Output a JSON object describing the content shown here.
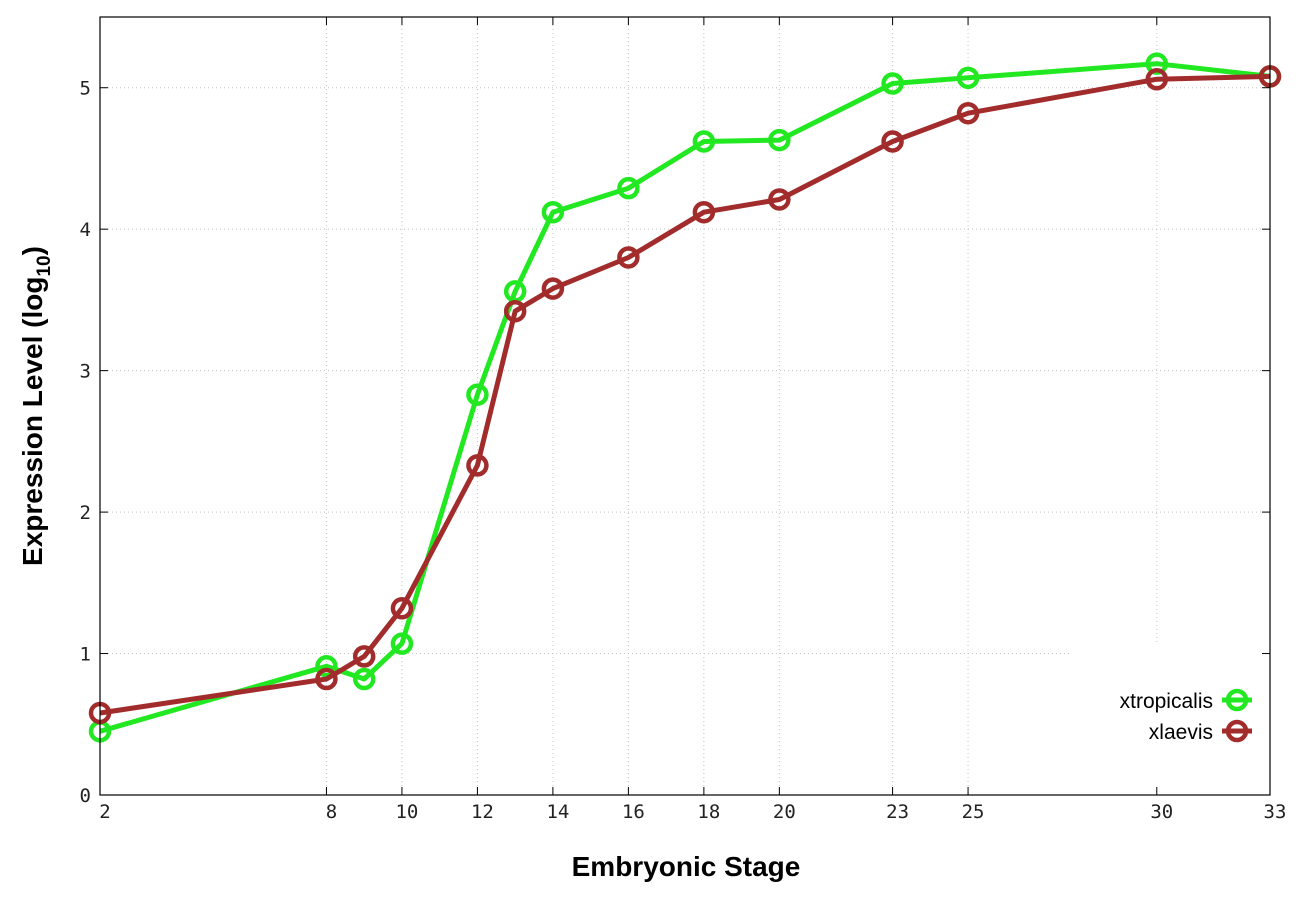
{
  "chart_data": {
    "type": "line",
    "xlabel": "Embryonic Stage",
    "ylabel_main": "Expression Level (log",
    "ylabel_sub": "10",
    "ylabel_close": ")",
    "x": [
      2,
      8,
      9,
      10,
      12,
      13,
      14,
      16,
      18,
      20,
      23,
      25,
      30,
      33
    ],
    "xticks": [
      2,
      8,
      10,
      12,
      14,
      16,
      18,
      20,
      23,
      25,
      30,
      33
    ],
    "yticks": [
      0,
      1,
      2,
      3,
      4,
      5
    ],
    "xlim": [
      2,
      33
    ],
    "ylim": [
      0,
      5.5
    ],
    "grid": true,
    "legend_position": "bottom-right",
    "series": [
      {
        "name": "xtropicalis",
        "color": "#22e822",
        "values": [
          0.45,
          0.91,
          0.82,
          1.07,
          2.83,
          3.56,
          4.12,
          4.29,
          4.62,
          4.63,
          5.03,
          5.07,
          5.17,
          5.08
        ]
      },
      {
        "name": "xlaevis",
        "color": "#a22c2c",
        "values": [
          0.58,
          0.82,
          0.98,
          1.32,
          2.33,
          3.42,
          3.58,
          3.8,
          4.12,
          4.21,
          4.62,
          4.82,
          5.06,
          5.08
        ]
      }
    ]
  }
}
